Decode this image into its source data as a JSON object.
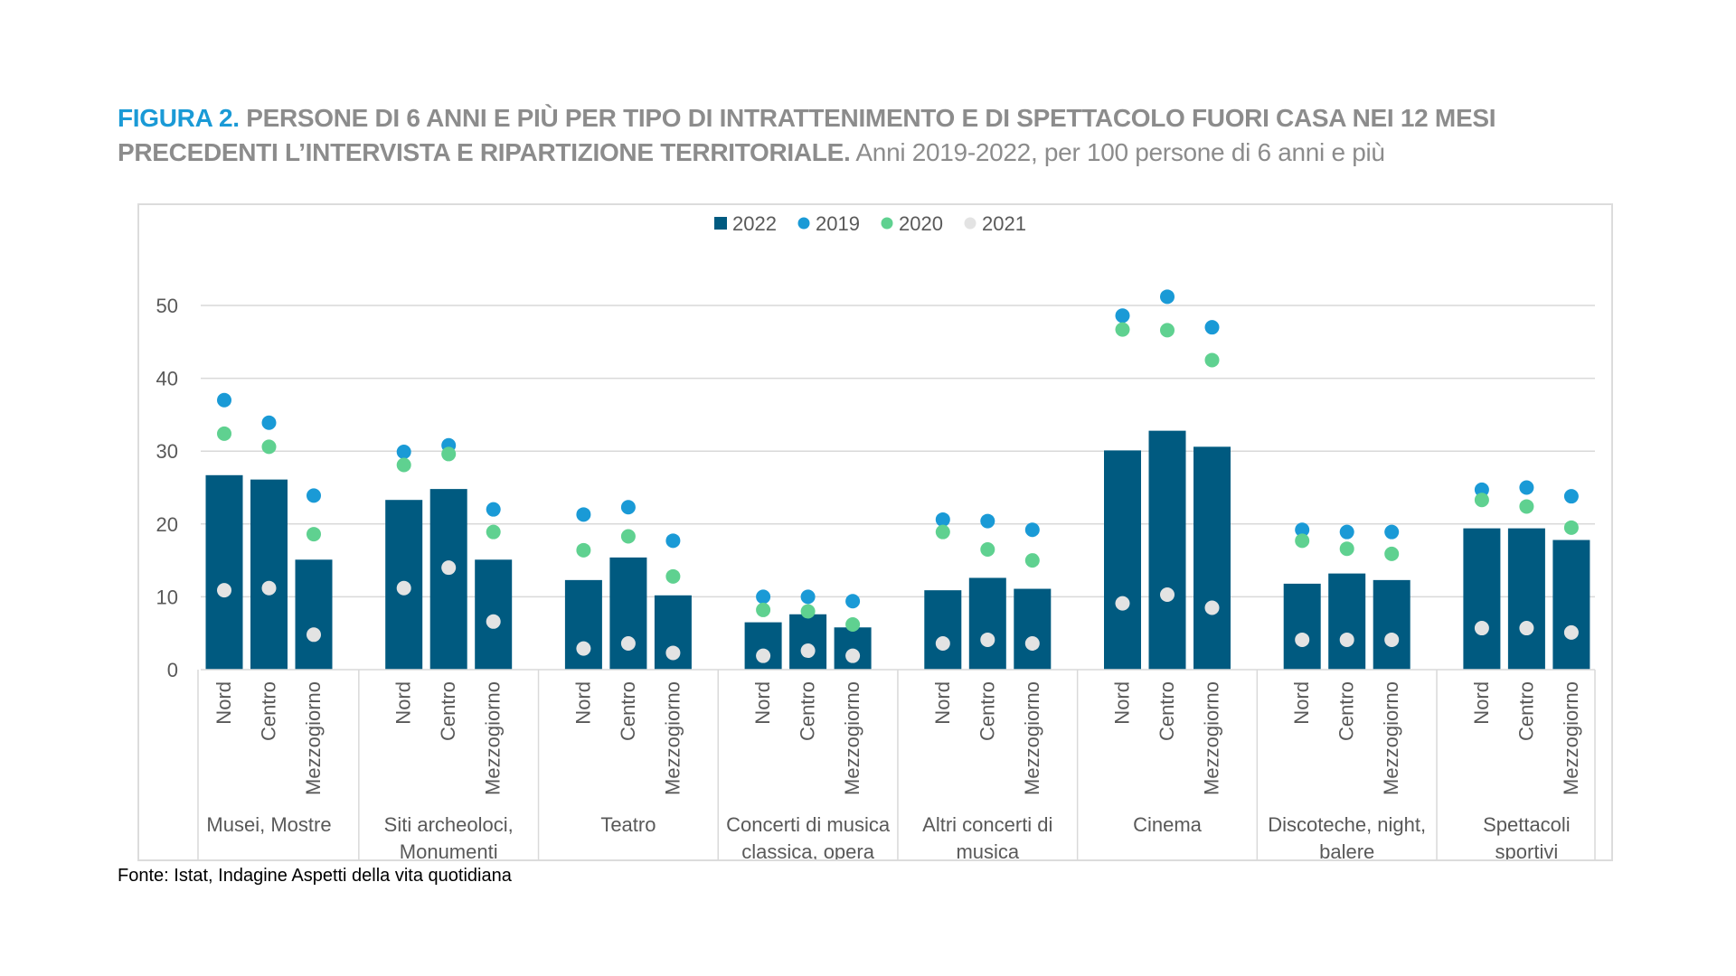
{
  "title": {
    "figure_label": "FIGURA 2.",
    "heading": "PERSONE DI 6 ANNI E PIÙ PER TIPO DI INTRATTENIMENTO E DI SPETTACOLO FUORI CASA NEI 12 MESI PRECEDENTI L’INTERVISTA E RIPARTIZIONE TERRITORIALE.",
    "subtitle": "Anni 2019-2022, per 100 persone di 6 anni e più"
  },
  "source": "Fonte: Istat, Indagine Aspetti della vita quotidiana",
  "colors": {
    "bar_2022": "#005a80",
    "dot_2019": "#1a9ad6",
    "dot_2020": "#5fd190",
    "dot_2021": "#e3e3e3",
    "grid": "#d9d9d9",
    "axis_text": "#595959"
  },
  "chart_data": {
    "type": "bar",
    "title": "",
    "ylim": [
      0,
      50
    ],
    "yticks": [
      0,
      10,
      20,
      30,
      40,
      50
    ],
    "grid": true,
    "legend_position": "top-center",
    "regions": [
      "Nord",
      "Centro",
      "Mezzogiorno"
    ],
    "groups": [
      {
        "label_lines": [
          "Musei, Mostre"
        ]
      },
      {
        "label_lines": [
          "Siti archeoloci,",
          "Monumenti"
        ]
      },
      {
        "label_lines": [
          "Teatro"
        ]
      },
      {
        "label_lines": [
          "Concerti di musica",
          "classica, opera"
        ]
      },
      {
        "label_lines": [
          "Altri concerti di",
          "musica"
        ]
      },
      {
        "label_lines": [
          "Cinema"
        ]
      },
      {
        "label_lines": [
          "Discoteche, night,",
          "balere"
        ]
      },
      {
        "label_lines": [
          "Spettacoli",
          "sportivi"
        ]
      }
    ],
    "series": [
      {
        "name": "2022",
        "kind": "bar",
        "values": [
          26.7,
          26.1,
          15.1,
          23.3,
          24.8,
          15.1,
          12.3,
          15.4,
          10.2,
          6.5,
          7.6,
          5.8,
          10.9,
          12.6,
          11.1,
          30.1,
          32.8,
          30.6,
          11.8,
          13.2,
          12.3,
          19.4,
          19.4,
          17.8
        ]
      },
      {
        "name": "2019",
        "kind": "dot",
        "values": [
          37.0,
          33.9,
          23.9,
          29.9,
          30.8,
          22.0,
          21.3,
          22.3,
          17.7,
          10.0,
          10.0,
          9.4,
          20.6,
          20.4,
          19.2,
          48.6,
          51.2,
          47.0,
          19.2,
          18.9,
          18.9,
          24.7,
          25.0,
          23.8
        ]
      },
      {
        "name": "2020",
        "kind": "dot",
        "values": [
          32.4,
          30.6,
          18.6,
          28.1,
          29.6,
          18.9,
          16.4,
          18.3,
          12.8,
          8.2,
          8.0,
          6.2,
          18.9,
          16.5,
          15.0,
          46.7,
          46.6,
          42.5,
          17.7,
          16.6,
          15.9,
          23.3,
          22.4,
          19.5
        ]
      },
      {
        "name": "2021",
        "kind": "dot",
        "values": [
          10.9,
          11.2,
          4.8,
          11.2,
          14.0,
          6.6,
          2.9,
          3.6,
          2.3,
          1.9,
          2.6,
          1.9,
          3.6,
          4.1,
          3.6,
          9.1,
          10.3,
          8.5,
          4.1,
          4.1,
          4.1,
          5.7,
          5.7,
          5.1
        ]
      }
    ]
  }
}
